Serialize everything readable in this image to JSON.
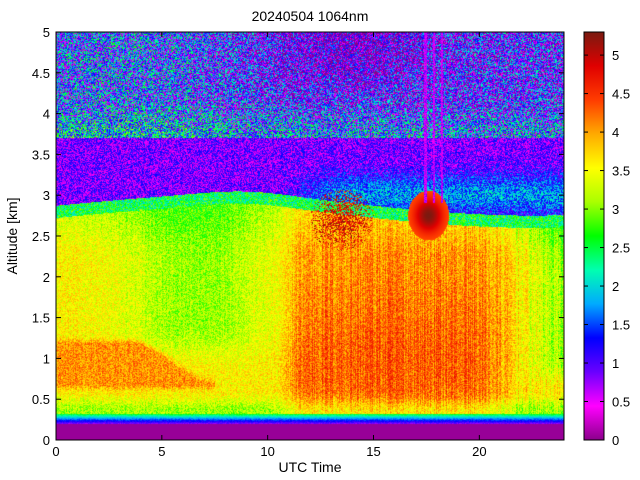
{
  "chart_data": {
    "type": "heatmap",
    "title": "20240504 1064nm",
    "xlabel": "UTC Time",
    "ylabel": "Altitude [km]",
    "xlim": [
      0,
      24
    ],
    "ylim": [
      0,
      5
    ],
    "xticks": [
      0,
      5,
      10,
      15,
      20
    ],
    "yticks": [
      0,
      0.5,
      1,
      1.5,
      2,
      2.5,
      3,
      3.5,
      4,
      4.5,
      5
    ],
    "colorbar": {
      "range": [
        0,
        5.3
      ],
      "ticks": [
        0,
        0.5,
        1,
        1.5,
        2,
        2.5,
        3,
        3.5,
        4,
        4.5,
        5
      ],
      "colormap": [
        "#8b008b",
        "#ff00ff",
        "#6a00ff",
        "#0000ff",
        "#00aaff",
        "#00ffb0",
        "#00ff00",
        "#aaff00",
        "#ffff00",
        "#ffaa00",
        "#ff3c00",
        "#e00000",
        "#7a1a10"
      ]
    },
    "grid": false,
    "features": [
      {
        "name": "surface layer",
        "time": [
          0,
          24
        ],
        "altitude": [
          0,
          0.2
        ],
        "value": 0
      },
      {
        "name": "near-ground gradient",
        "time": [
          0,
          24
        ],
        "altitude": [
          0.2,
          0.35
        ],
        "value": 1.5
      },
      {
        "name": "morning aerosol layer",
        "time": [
          0,
          7
        ],
        "altitude": [
          0.6,
          1.25
        ],
        "value": 4.1
      },
      {
        "name": "mixed layer",
        "time": [
          0,
          24
        ],
        "altitude": [
          0.35,
          2.8
        ],
        "value": 3.5
      },
      {
        "name": "afternoon enhanced aerosol",
        "time": [
          10.5,
          21
        ],
        "altitude": [
          0.35,
          2.6
        ],
        "value": 4.0
      },
      {
        "name": "boundary-layer top",
        "time": [
          0,
          24
        ],
        "altitude": [
          2.6,
          2.9
        ],
        "value": 2.8
      },
      {
        "name": "cloud cluster",
        "time": [
          12,
          15
        ],
        "altitude": [
          2.3,
          3.2
        ],
        "value": 4.8
      },
      {
        "name": "cloud",
        "time": [
          16.5,
          18.6
        ],
        "altitude": [
          2.5,
          3.2
        ],
        "value": 5.2
      },
      {
        "name": "free troposphere",
        "time": [
          0,
          24
        ],
        "altitude": [
          2.9,
          3.7
        ],
        "value": 0.3
      },
      {
        "name": "noisy upper region",
        "time": [
          0,
          24
        ],
        "altitude": [
          3.7,
          5
        ],
        "value": 1.8
      }
    ]
  }
}
